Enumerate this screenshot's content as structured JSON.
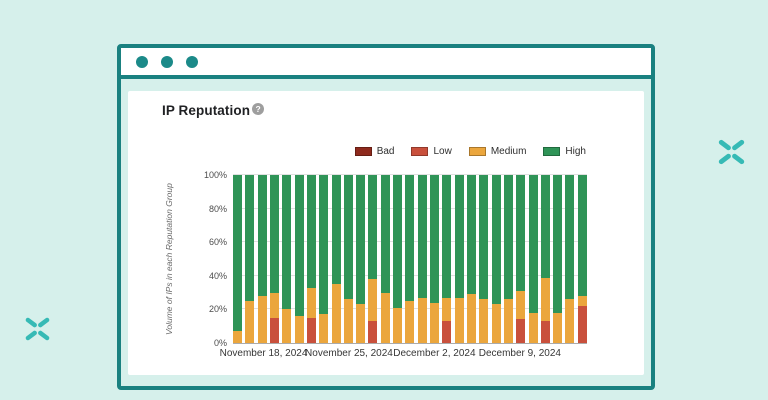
{
  "window": {
    "dot_color": "#1b8a89",
    "frame_color": "#1a8180"
  },
  "card": {
    "title": "IP Reputation",
    "help_icon": "question-mark-circle-icon"
  },
  "decorations": {
    "sparkle_color": "#36bab5"
  },
  "chart_data": {
    "type": "bar",
    "stacked": true,
    "title": "IP Reputation",
    "ylabel": "Volume of IPs in each Reputation Group",
    "ylim": [
      0,
      100
    ],
    "grid": true,
    "legend_position": "top-right",
    "y_ticks": [
      "0%",
      "20%",
      "40%",
      "60%",
      "80%",
      "100%"
    ],
    "legend": [
      {
        "key": "bad",
        "label": "Bad",
        "color": "#8e2a1d"
      },
      {
        "key": "low",
        "label": "Low",
        "color": "#c9503c"
      },
      {
        "key": "medium",
        "label": "Medium",
        "color": "#eba63d"
      },
      {
        "key": "high",
        "label": "High",
        "color": "#2f9457"
      }
    ],
    "stack_order_bottom_to_top": [
      "bad",
      "low",
      "medium",
      "high"
    ],
    "x_tick_labels": [
      {
        "label": "November 18, 2024",
        "bar_index": 2
      },
      {
        "label": "November 25, 2024",
        "bar_index": 9
      },
      {
        "label": "December 2, 2024",
        "bar_index": 16
      },
      {
        "label": "December 9, 2024",
        "bar_index": 23
      }
    ],
    "bars": [
      {
        "bad": 0,
        "low": 0,
        "medium": 7,
        "high": 93
      },
      {
        "bad": 0,
        "low": 0,
        "medium": 25,
        "high": 75
      },
      {
        "bad": 0,
        "low": 0,
        "medium": 28,
        "high": 72
      },
      {
        "bad": 0,
        "low": 15,
        "medium": 15,
        "high": 70
      },
      {
        "bad": 0,
        "low": 0,
        "medium": 20,
        "high": 80
      },
      {
        "bad": 0,
        "low": 0,
        "medium": 16,
        "high": 84
      },
      {
        "bad": 0,
        "low": 15,
        "medium": 18,
        "high": 67
      },
      {
        "bad": 0,
        "low": 0,
        "medium": 17,
        "high": 83
      },
      {
        "bad": 0,
        "low": 0,
        "medium": 35,
        "high": 65
      },
      {
        "bad": 0,
        "low": 0,
        "medium": 26,
        "high": 74
      },
      {
        "bad": 0,
        "low": 0,
        "medium": 23,
        "high": 77
      },
      {
        "bad": 0,
        "low": 13,
        "medium": 25,
        "high": 62
      },
      {
        "bad": 0,
        "low": 0,
        "medium": 30,
        "high": 70
      },
      {
        "bad": 0,
        "low": 0,
        "medium": 21,
        "high": 79
      },
      {
        "bad": 0,
        "low": 0,
        "medium": 25,
        "high": 75
      },
      {
        "bad": 0,
        "low": 0,
        "medium": 27,
        "high": 73
      },
      {
        "bad": 0,
        "low": 0,
        "medium": 24,
        "high": 76
      },
      {
        "bad": 0,
        "low": 13,
        "medium": 14,
        "high": 73
      },
      {
        "bad": 0,
        "low": 0,
        "medium": 27,
        "high": 73
      },
      {
        "bad": 0,
        "low": 0,
        "medium": 29,
        "high": 71
      },
      {
        "bad": 0,
        "low": 0,
        "medium": 26,
        "high": 74
      },
      {
        "bad": 0,
        "low": 0,
        "medium": 23,
        "high": 77
      },
      {
        "bad": 0,
        "low": 0,
        "medium": 26,
        "high": 74
      },
      {
        "bad": 0,
        "low": 14,
        "medium": 17,
        "high": 69
      },
      {
        "bad": 0,
        "low": 0,
        "medium": 18,
        "high": 82
      },
      {
        "bad": 0,
        "low": 13,
        "medium": 26,
        "high": 61
      },
      {
        "bad": 0,
        "low": 0,
        "medium": 18,
        "high": 82
      },
      {
        "bad": 0,
        "low": 0,
        "medium": 26,
        "high": 74
      },
      {
        "bad": 0,
        "low": 22,
        "medium": 6,
        "high": 72
      }
    ]
  }
}
